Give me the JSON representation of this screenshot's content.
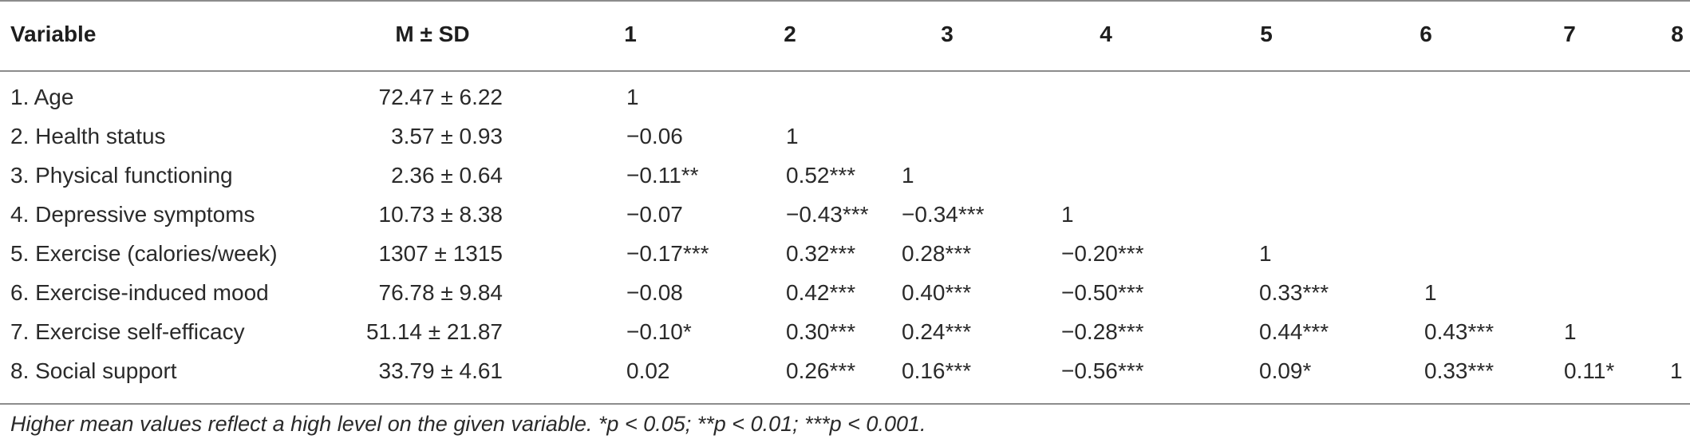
{
  "table": {
    "headers": [
      "Variable",
      "M ± SD",
      "1",
      "2",
      "3",
      "4",
      "5",
      "6",
      "7",
      "8"
    ],
    "rows": [
      [
        "1. Age",
        "72.47 ± 6.22",
        "1",
        "",
        "",
        "",
        "",
        "",
        "",
        ""
      ],
      [
        "2. Health status",
        "3.57 ± 0.93",
        "−0.06",
        "1",
        "",
        "",
        "",
        "",
        "",
        ""
      ],
      [
        "3. Physical functioning",
        "2.36 ± 0.64",
        "−0.11**",
        "0.52***",
        "1",
        "",
        "",
        "",
        "",
        ""
      ],
      [
        "4. Depressive symptoms",
        "10.73 ± 8.38",
        "−0.07",
        "−0.43***",
        "−0.34***",
        "1",
        "",
        "",
        "",
        ""
      ],
      [
        "5. Exercise (calories/week)",
        "1307 ± 1315",
        "−0.17***",
        "0.32***",
        "0.28***",
        "−0.20***",
        "1",
        "",
        "",
        ""
      ],
      [
        "6. Exercise-induced mood",
        "76.78 ± 9.84",
        "−0.08",
        "0.42***",
        "0.40***",
        "−0.50***",
        "0.33***",
        "1",
        "",
        ""
      ],
      [
        "7. Exercise self-efficacy",
        "51.14 ± 21.87",
        "−0.10*",
        "0.30***",
        "0.24***",
        "−0.28***",
        "0.44***",
        "0.43***",
        "1",
        ""
      ],
      [
        "8. Social support",
        "33.79 ± 4.61",
        "0.02",
        "0.26***",
        "0.16***",
        "−0.56***",
        "0.09*",
        "0.33***",
        "0.11*",
        "1"
      ]
    ],
    "footnote": "Higher mean values reflect a high level on the given variable. *p < 0.05; **p < 0.01; ***p < 0.001."
  }
}
